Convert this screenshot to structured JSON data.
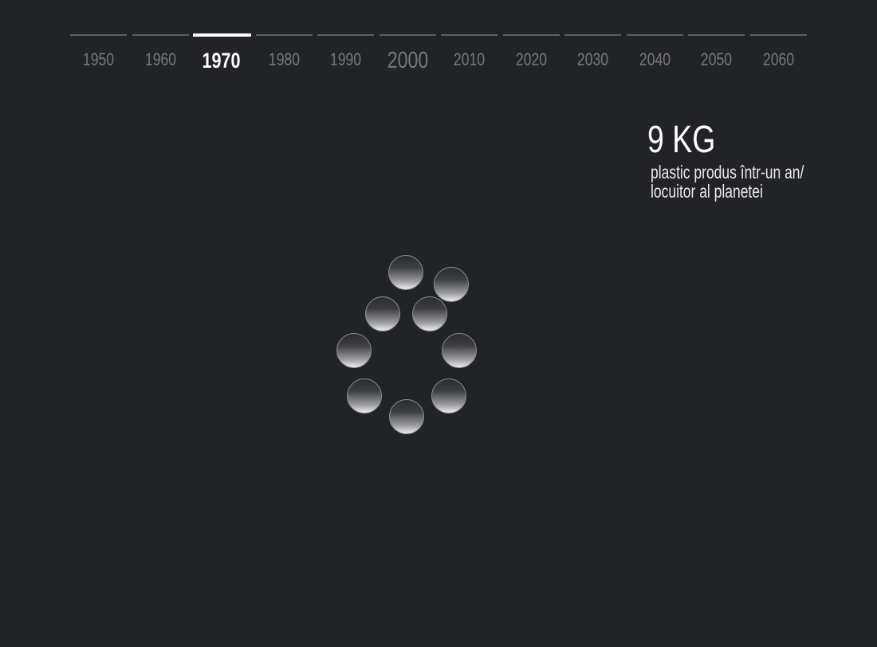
{
  "timeline": {
    "years": [
      {
        "label": "1950",
        "state": "inactive"
      },
      {
        "label": "1960",
        "state": "inactive"
      },
      {
        "label": "1970",
        "state": "active"
      },
      {
        "label": "1980",
        "state": "inactive"
      },
      {
        "label": "1990",
        "state": "inactive"
      },
      {
        "label": "2000",
        "state": "inactive"
      },
      {
        "label": "2010",
        "state": "inactive"
      },
      {
        "label": "2020",
        "state": "inactive"
      },
      {
        "label": "2030",
        "state": "inactive"
      },
      {
        "label": "2040",
        "state": "inactive"
      },
      {
        "label": "2050",
        "state": "inactive"
      },
      {
        "label": "2060",
        "state": "inactive"
      }
    ],
    "selected": "1970"
  },
  "stat": {
    "value": "9 KG",
    "description_line1": "plastic produs într-un an/",
    "description_line2": "locuitor al planetei"
  },
  "visual": {
    "unit_count": 9,
    "unit_icon": "plastic-unit-sphere-icon"
  },
  "colors": {
    "background": "#222326",
    "active": "#ffffff",
    "inactive": "#77787c"
  }
}
